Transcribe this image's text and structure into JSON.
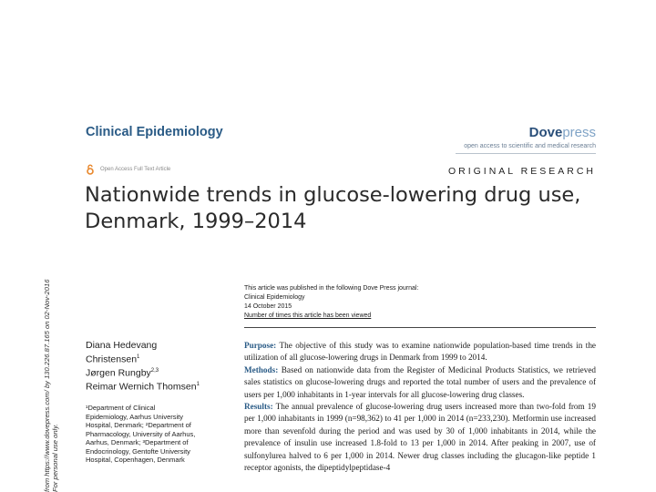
{
  "header": {
    "journal_name": "Clinical Epidemiology",
    "publisher_part1": "Dove",
    "publisher_part2": "press",
    "publisher_tagline": "open access to scientific and medical research",
    "open_access_label": "Open Access Full Text Article",
    "article_type": "ORIGINAL RESEARCH"
  },
  "article": {
    "title_line1": "Nationwide trends in glucose-lowering drug use,",
    "title_line2": "Denmark, 1999–2014"
  },
  "publication_info": {
    "line1": "This article was published in the following Dove Press journal:",
    "line2": "Clinical Epidemiology",
    "line3": "14 October 2015",
    "line4": "Number of times this article has been viewed"
  },
  "authors": {
    "a1": "Diana Hedevang",
    "a2": "Christensen",
    "a2_sup": "1",
    "a3": "Jørgen Rungby",
    "a3_sup": "2,3",
    "a4": "Reimar Wernich Thomsen",
    "a4_sup": "1"
  },
  "affiliations": {
    "l1": "¹Department of Clinical",
    "l2": "Epidemiology, Aarhus University",
    "l3": "Hospital, Denmark; ²Department of",
    "l4": "Pharmacology, University of Aarhus,",
    "l5": "Aarhus, Denmark; ³Department of",
    "l6": "Endocrinology, Gentofte University",
    "l7": "Hospital, Copenhagen, Denmark"
  },
  "abstract": {
    "purpose_label": "Purpose:",
    "purpose_text": " The objective of this study was to examine nationwide population-based time trends in the utilization of all glucose-lowering drugs in Denmark from 1999 to 2014.",
    "methods_label": "Methods:",
    "methods_text": " Based on nationwide data from the Register of Medicinal Products Statistics, we retrieved sales statistics on glucose-lowering drugs and reported the total number of users and the prevalence of users per 1,000 inhabitants in 1-year intervals for all glucose-lowering drug classes.",
    "results_label": "Results:",
    "results_text": " The annual prevalence of glucose-lowering drug users increased more than two-fold from 19 per 1,000 inhabitants in 1999 (n=98,362) to 41 per 1,000 in 2014 (n=233,230). Metformin use increased more than sevenfold during the period and was used by 30 of 1,000 inhabitants in 2014, while the prevalence of insulin use increased 1.8-fold to 13 per 1,000 in 2014. After peaking in 2007, use of sulfonylurea halved to 6 per 1,000 in 2014. Newer drug classes including the glucagon-like peptide 1 receptor agonists, the dipeptidylpeptidase-4"
  },
  "side_note": {
    "line1": "from https://www.dovepress.com/ by 130.226.87.165 on 02-Nov-2016",
    "line2": "For personal use only."
  },
  "colors": {
    "journal_blue": "#2a5b86",
    "dove_dark": "#2a4f7a",
    "dove_light": "#7fa3c6",
    "open_access_orange": "#e8862a"
  }
}
